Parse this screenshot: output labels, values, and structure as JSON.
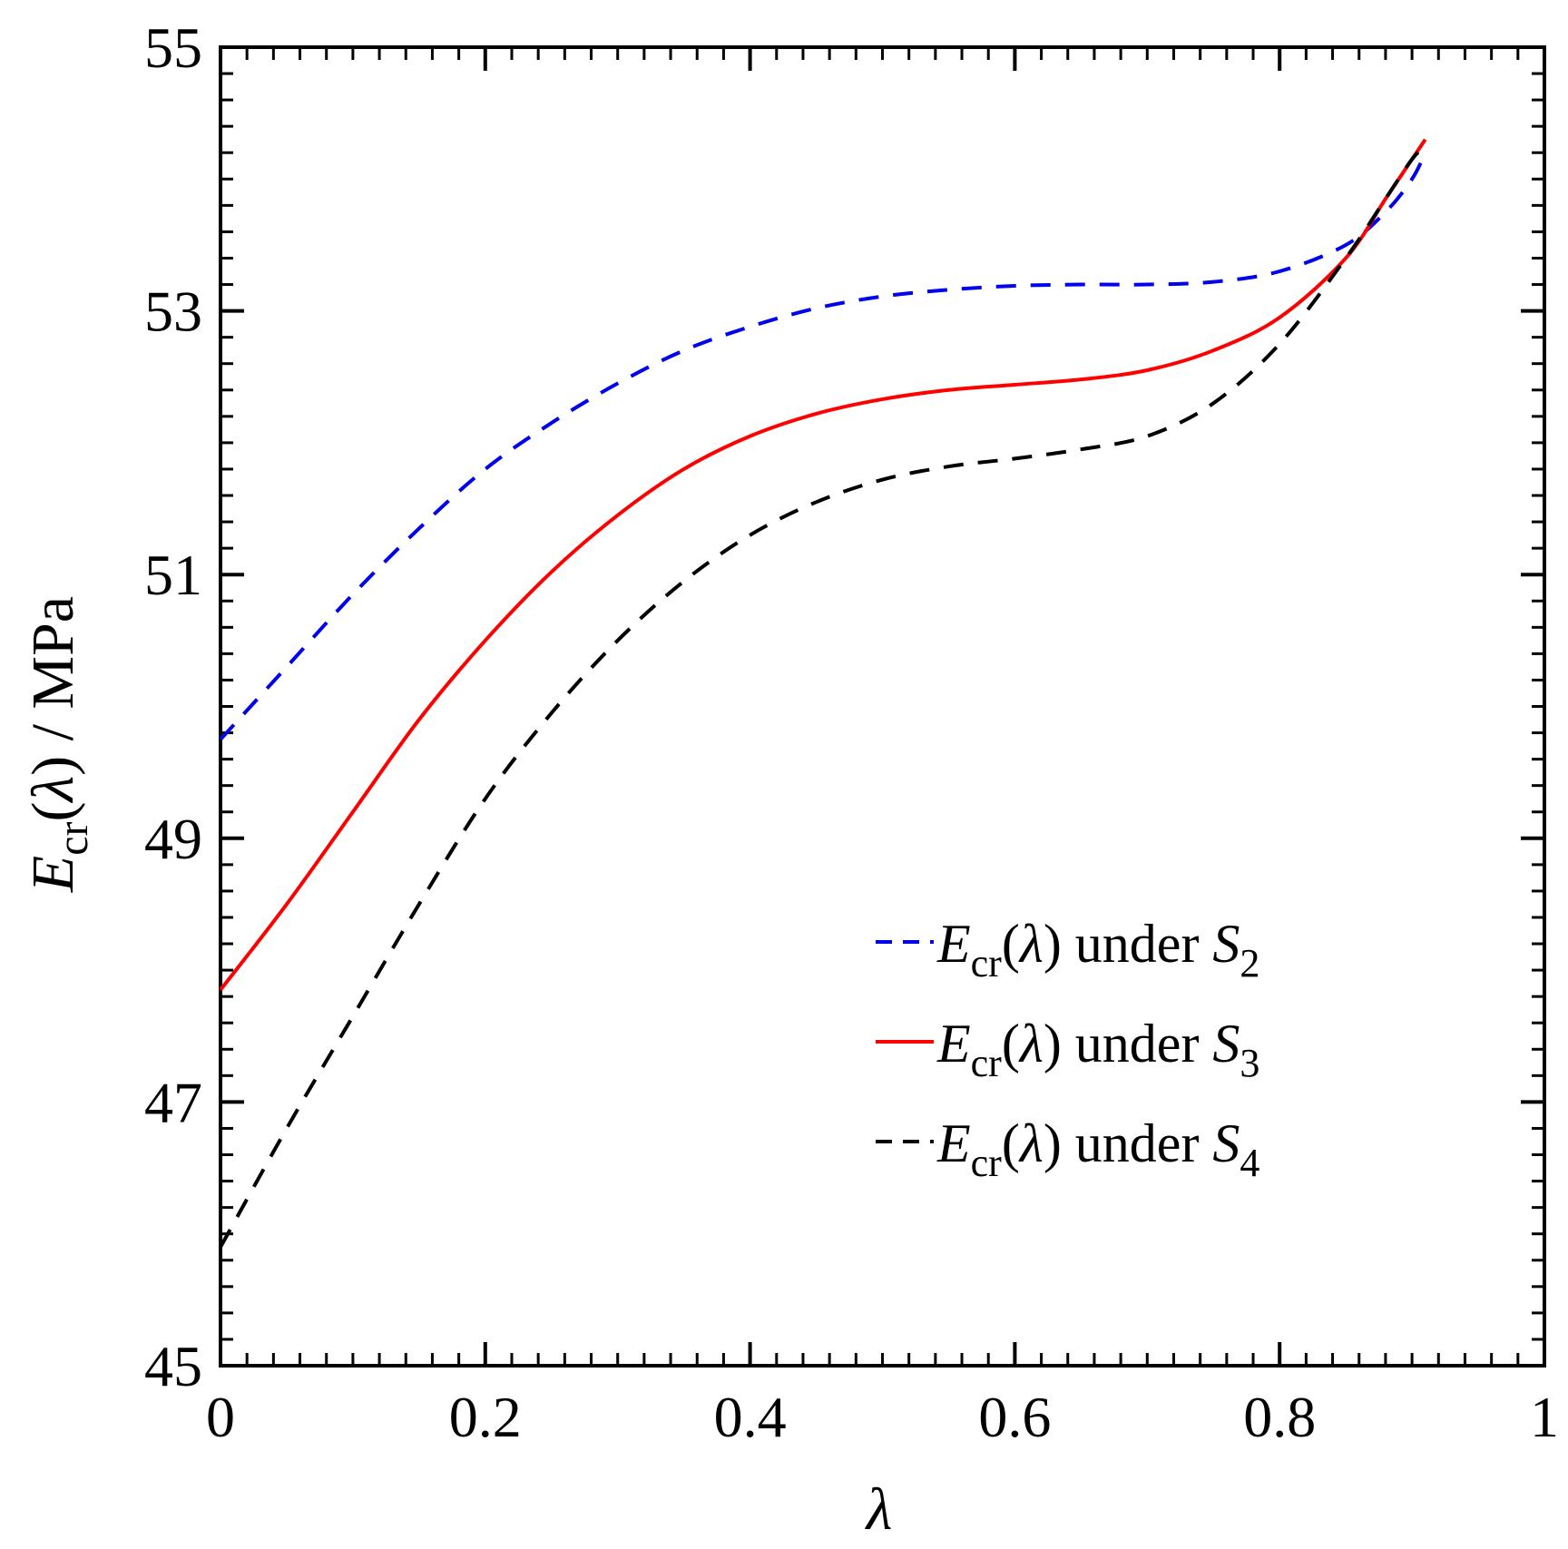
{
  "chart_data": {
    "type": "line",
    "title": "",
    "xlabel": "λ",
    "ylabel": {
      "main": "E",
      "sub": "cr",
      "arg_open": "(",
      "arg_var": "λ",
      "arg_close": ")",
      "unit": " / MPa"
    },
    "xlim": [
      0,
      1
    ],
    "ylim": [
      45,
      55
    ],
    "x_ticks": [
      0,
      0.2,
      0.4,
      0.6,
      0.8,
      1
    ],
    "x_tick_labels": [
      "0",
      "0.2",
      "0.4",
      "0.6",
      "0.8",
      "1"
    ],
    "y_ticks": [
      45,
      47,
      49,
      51,
      53,
      55
    ],
    "y_tick_labels": [
      "45",
      "47",
      "49",
      "51",
      "53",
      "55"
    ],
    "x_minor_step": 0.02,
    "y_minor_step": 0.2,
    "grid": false,
    "legend_position": "lower-right",
    "series": [
      {
        "name": "E_cr(λ) under S_2",
        "legend": {
          "main": "E",
          "sub": "cr",
          "arg": "(λ) under ",
          "var": "S",
          "var_sub": "2"
        },
        "color": "#0000ee",
        "dash": "dashed",
        "x": [
          0,
          0.05,
          0.1,
          0.15,
          0.2,
          0.25,
          0.3,
          0.35,
          0.4,
          0.45,
          0.5,
          0.55,
          0.6,
          0.65,
          0.7,
          0.75,
          0.8,
          0.85,
          0.88,
          0.9,
          0.91
        ],
        "y": [
          49.75,
          50.3,
          50.85,
          51.35,
          51.8,
          52.15,
          52.45,
          52.7,
          52.88,
          53.02,
          53.11,
          53.16,
          53.19,
          53.2,
          53.2,
          53.22,
          53.3,
          53.5,
          53.75,
          54.0,
          54.2
        ]
      },
      {
        "name": "E_cr(λ) under S_3",
        "legend": {
          "main": "E",
          "sub": "cr",
          "arg": "(λ) under ",
          "var": "S",
          "var_sub": "3"
        },
        "color": "#ff0000",
        "dash": "solid",
        "x": [
          0,
          0.05,
          0.1,
          0.15,
          0.2,
          0.25,
          0.3,
          0.35,
          0.4,
          0.45,
          0.5,
          0.55,
          0.6,
          0.65,
          0.7,
          0.75,
          0.8,
          0.85,
          0.88,
          0.9,
          0.91
        ],
        "y": [
          47.85,
          48.5,
          49.2,
          49.9,
          50.5,
          51.02,
          51.45,
          51.8,
          52.05,
          52.22,
          52.33,
          52.4,
          52.44,
          52.48,
          52.55,
          52.7,
          52.95,
          53.4,
          53.85,
          54.15,
          54.3
        ]
      },
      {
        "name": "E_cr(λ) under S_4",
        "legend": {
          "main": "E",
          "sub": "cr",
          "arg": "(λ) under ",
          "var": "S",
          "var_sub": "4"
        },
        "color": "#000000",
        "dash": "dashed",
        "x": [
          0,
          0.05,
          0.1,
          0.15,
          0.2,
          0.25,
          0.3,
          0.35,
          0.4,
          0.45,
          0.5,
          0.55,
          0.6,
          0.65,
          0.7,
          0.75,
          0.8,
          0.85,
          0.88,
          0.9,
          0.91
        ],
        "y": [
          45.9,
          46.8,
          47.65,
          48.5,
          49.3,
          49.95,
          50.5,
          50.95,
          51.3,
          51.55,
          51.72,
          51.82,
          51.88,
          51.95,
          52.05,
          52.3,
          52.75,
          53.4,
          53.85,
          54.15,
          54.25
        ]
      }
    ]
  }
}
